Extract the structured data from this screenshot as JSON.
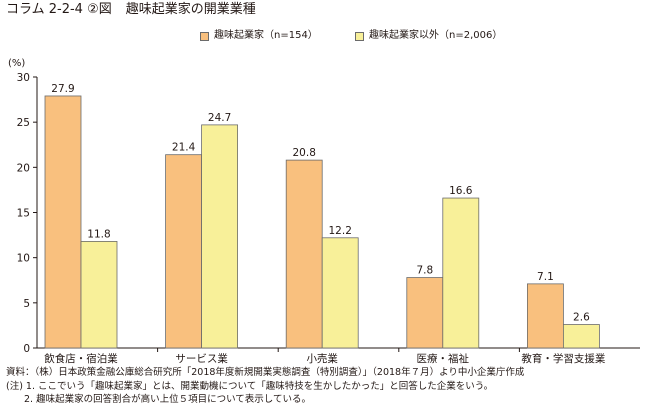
{
  "header": {
    "figure_number": "コラム 2-2-4 ②図",
    "title": "趣味起業家の開業業種"
  },
  "chart_data": {
    "type": "bar",
    "unit_label": "(%)",
    "categories": [
      "飲食店・宿泊業",
      "サービス業",
      "小売業",
      "医療・福祉",
      "教育・学習支援業"
    ],
    "series": [
      {
        "name": "趣味起業家（n=154）",
        "color": "#f9c07e",
        "values": [
          27.9,
          21.4,
          20.8,
          7.8,
          7.1
        ]
      },
      {
        "name": "趣味起業家以外（n=2,006）",
        "color": "#f8f099",
        "values": [
          11.8,
          24.7,
          12.2,
          16.6,
          2.6
        ]
      }
    ],
    "ylim": [
      0,
      30
    ],
    "yticks": [
      0,
      5,
      10,
      15,
      20,
      25,
      30
    ],
    "grid": false,
    "legend_position": "top"
  },
  "notes": {
    "source": "資料：（株）日本政策金融公庫総合研究所「2018年度新規開業実態調査（特別調査）」（2018年７月）より中小企業庁作成",
    "note1": "(注) 1. ここでいう「趣味起業家」とは、開業動機について「趣味特技を生かしたかった」と回答した企業をいう。",
    "note2": "2. 趣味起業家の回答割合が高い上位５項目について表示している。"
  }
}
